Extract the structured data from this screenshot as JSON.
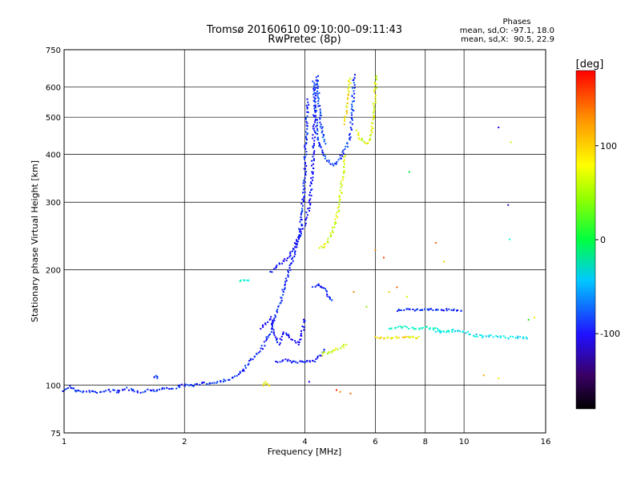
{
  "chart_data": {
    "type": "scatter",
    "title": "Tromsø 20160610 09:10:00–09:11:43",
    "subtitle": "RwPretec (8p)",
    "xlabel": "Frequency [MHz]",
    "ylabel": "Stationary phase Virtual Height [km]",
    "x_scale": "log",
    "y_scale": "log",
    "xlim": [
      1,
      16
    ],
    "ylim": [
      75,
      750
    ],
    "grid": true,
    "x_ticks": [
      1,
      2,
      4,
      6,
      8,
      10,
      16
    ],
    "x_tick_labels": [
      "1",
      "2",
      "4",
      "6",
      "8",
      "10",
      "16"
    ],
    "y_ticks": [
      75,
      100,
      200,
      300,
      400,
      500,
      600,
      750
    ],
    "y_tick_labels": [
      "75",
      "100",
      "200",
      "300",
      "400",
      "500",
      "600",
      "750"
    ],
    "phases_box": {
      "title": "Phases",
      "line_o": "mean, sd,O: -97.1, 18.0",
      "line_x": "mean, sd,X:  90.5, 22.9"
    },
    "colorbar": {
      "label": "[deg]",
      "range": [
        -180,
        180
      ],
      "ticks": [
        100,
        0,
        -100
      ],
      "tick_labels": [
        "100",
        "0",
        "-100"
      ],
      "colormap": "rainbow"
    },
    "traces": [
      {
        "points": [
          [
            1.0,
            97
          ],
          [
            1.03,
            99
          ],
          [
            1.06,
            97
          ],
          [
            1.1,
            96
          ],
          [
            1.15,
            96
          ],
          [
            1.2,
            96
          ],
          [
            1.25,
            96
          ],
          [
            1.3,
            97
          ],
          [
            1.36,
            96
          ],
          [
            1.42,
            98
          ],
          [
            1.48,
            97
          ],
          [
            1.55,
            96
          ],
          [
            1.62,
            97
          ],
          [
            1.7,
            97
          ],
          [
            1.78,
            98
          ],
          [
            1.86,
            98
          ],
          [
            1.94,
            99
          ],
          [
            2.0,
            100
          ],
          [
            2.08,
            100
          ],
          [
            2.16,
            100
          ],
          [
            2.24,
            101
          ],
          [
            2.32,
            101
          ],
          [
            2.42,
            102
          ],
          [
            2.52,
            103
          ],
          [
            2.62,
            104
          ],
          [
            2.72,
            106
          ],
          [
            2.82,
            110
          ],
          [
            2.9,
            115
          ],
          [
            2.98,
            118
          ],
          [
            3.05,
            122
          ],
          [
            3.12,
            125
          ],
          [
            3.2,
            130
          ],
          [
            3.28,
            138
          ],
          [
            3.36,
            148
          ],
          [
            3.44,
            160
          ],
          [
            3.5,
            170
          ],
          [
            3.56,
            182
          ],
          [
            3.6,
            190
          ],
          [
            3.66,
            200
          ],
          [
            3.72,
            210
          ],
          [
            3.78,
            225
          ],
          [
            3.84,
            240
          ],
          [
            3.9,
            260
          ],
          [
            3.94,
            290
          ],
          [
            3.98,
            320
          ],
          [
            4.0,
            360
          ],
          [
            4.02,
            420
          ],
          [
            4.05,
            500
          ],
          [
            4.08,
            560
          ]
        ],
        "phase": -100
      },
      {
        "points": [
          [
            3.3,
            197
          ],
          [
            3.4,
            203
          ],
          [
            3.5,
            208
          ],
          [
            3.6,
            213
          ],
          [
            3.7,
            222
          ],
          [
            3.8,
            235
          ],
          [
            3.9,
            248
          ],
          [
            4.0,
            265
          ],
          [
            4.1,
            290
          ],
          [
            4.15,
            330
          ],
          [
            4.2,
            400
          ],
          [
            4.22,
            470
          ],
          [
            4.24,
            540
          ],
          [
            4.26,
            600
          ],
          [
            4.28,
            630
          ]
        ],
        "phase": -110
      },
      {
        "points": [
          [
            4.2,
            620
          ],
          [
            4.25,
            520
          ],
          [
            4.3,
            440
          ],
          [
            4.4,
            410
          ],
          [
            4.5,
            390
          ],
          [
            4.6,
            380
          ],
          [
            4.7,
            375
          ],
          [
            4.8,
            380
          ],
          [
            4.9,
            392
          ],
          [
            5.0,
            405
          ],
          [
            5.1,
            420
          ],
          [
            5.2,
            450
          ],
          [
            5.25,
            500
          ],
          [
            5.28,
            560
          ],
          [
            5.3,
            620
          ],
          [
            5.32,
            650
          ]
        ],
        "phase": -95
      },
      {
        "points": [
          [
            4.3,
            640
          ],
          [
            4.32,
            580
          ],
          [
            4.35,
            520
          ],
          [
            4.4,
            470
          ],
          [
            4.45,
            440
          ],
          [
            4.5,
            420
          ]
        ],
        "phase": -90
      },
      {
        "points": [
          [
            4.35,
            228
          ],
          [
            4.45,
            230
          ],
          [
            4.55,
            236
          ],
          [
            4.65,
            246
          ],
          [
            4.75,
            262
          ],
          [
            4.85,
            290
          ],
          [
            4.92,
            320
          ],
          [
            4.98,
            360
          ],
          [
            5.02,
            400
          ]
        ],
        "phase": 95
      },
      {
        "points": [
          [
            5.05,
            480
          ],
          [
            5.1,
            560
          ],
          [
            5.15,
            600
          ],
          [
            5.2,
            640
          ]
        ],
        "phase": 110
      },
      {
        "points": [
          [
            5.4,
            460
          ],
          [
            5.5,
            440
          ],
          [
            5.6,
            430
          ],
          [
            5.7,
            428
          ],
          [
            5.8,
            432
          ],
          [
            5.85,
            445
          ],
          [
            5.9,
            470
          ],
          [
            5.95,
            520
          ],
          [
            6.0,
            580
          ],
          [
            6.02,
            620
          ],
          [
            6.04,
            650
          ]
        ],
        "phase": 100
      },
      {
        "points": [
          [
            3.4,
            115
          ],
          [
            3.5,
            116
          ],
          [
            3.6,
            116
          ],
          [
            3.7,
            115
          ],
          [
            3.8,
            115
          ],
          [
            3.9,
            115
          ],
          [
            4.0,
            115
          ],
          [
            4.1,
            115
          ],
          [
            4.2,
            115
          ],
          [
            4.3,
            117
          ],
          [
            4.4,
            120
          ],
          [
            4.5,
            124
          ]
        ],
        "phase": -105
      },
      {
        "points": [
          [
            4.4,
            120
          ],
          [
            4.5,
            122
          ],
          [
            4.6,
            121
          ],
          [
            4.7,
            122
          ],
          [
            4.8,
            124
          ],
          [
            4.9,
            125
          ],
          [
            5.0,
            126
          ],
          [
            5.1,
            128
          ]
        ],
        "phase": 95
      },
      {
        "points": [
          [
            6.0,
            133
          ],
          [
            6.3,
            133
          ],
          [
            6.6,
            133
          ],
          [
            6.9,
            133
          ],
          [
            7.2,
            133
          ],
          [
            7.5,
            133
          ],
          [
            7.8,
            133
          ]
        ],
        "phase": 110
      },
      {
        "points": [
          [
            6.8,
            157
          ],
          [
            7.0,
            157
          ],
          [
            7.3,
            157
          ],
          [
            7.6,
            157
          ],
          [
            8.0,
            157
          ],
          [
            8.4,
            157
          ],
          [
            8.8,
            157
          ],
          [
            9.2,
            157
          ],
          [
            9.6,
            157
          ],
          [
            10.0,
            157
          ]
        ],
        "phase": -100
      },
      {
        "points": [
          [
            3.1,
            140
          ],
          [
            3.2,
            145
          ],
          [
            3.3,
            150
          ],
          [
            3.35,
            135
          ],
          [
            3.45,
            128
          ],
          [
            3.55,
            138
          ],
          [
            3.7,
            132
          ],
          [
            3.85,
            128
          ],
          [
            3.95,
            140
          ],
          [
            4.0,
            150
          ]
        ],
        "phase": -115
      },
      {
        "points": [
          [
            4.2,
            180
          ],
          [
            4.3,
            182
          ],
          [
            4.4,
            181
          ],
          [
            4.5,
            178
          ],
          [
            4.6,
            170
          ],
          [
            4.7,
            165
          ]
        ],
        "phase": -100
      },
      {
        "points": [
          [
            6.5,
            140
          ],
          [
            6.9,
            142
          ],
          [
            7.3,
            141
          ],
          [
            7.7,
            140
          ],
          [
            8.1,
            141
          ],
          [
            8.5,
            140
          ],
          [
            8.9,
            138
          ],
          [
            9.4,
            140
          ]
        ],
        "phase": -20
      },
      {
        "points": [
          [
            8.5,
            138
          ],
          [
            9.0,
            137
          ],
          [
            9.5,
            139
          ],
          [
            10.0,
            138
          ],
          [
            10.5,
            135
          ],
          [
            11.0,
            134
          ],
          [
            12.0,
            134
          ],
          [
            13.0,
            133
          ],
          [
            14.0,
            133
          ],
          [
            14.5,
            133
          ]
        ],
        "phase": -40
      },
      {
        "points": [
          [
            1.68,
            104
          ],
          [
            1.7,
            106
          ],
          [
            1.72,
            103
          ]
        ],
        "phase": -100
      },
      {
        "points": [
          [
            2.75,
            187
          ],
          [
            2.8,
            188
          ],
          [
            2.85,
            187
          ],
          [
            2.9,
            188
          ]
        ],
        "phase": -20
      },
      {
        "points": [
          [
            3.15,
            100
          ],
          [
            3.2,
            102
          ],
          [
            3.25,
            98
          ]
        ],
        "phase": 105
      }
    ],
    "scatter_points": [
      {
        "x": 5.2,
        "y": 95,
        "phase": 150
      },
      {
        "x": 4.8,
        "y": 97,
        "phase": 170
      },
      {
        "x": 7.3,
        "y": 360,
        "phase": 20
      },
      {
        "x": 6.0,
        "y": 225,
        "phase": 140
      },
      {
        "x": 6.3,
        "y": 215,
        "phase": 160
      },
      {
        "x": 8.5,
        "y": 235,
        "phase": 150
      },
      {
        "x": 8.9,
        "y": 210,
        "phase": 120
      },
      {
        "x": 12.2,
        "y": 470,
        "phase": -130
      },
      {
        "x": 13.1,
        "y": 430,
        "phase": 100
      },
      {
        "x": 12.9,
        "y": 295,
        "phase": -150
      },
      {
        "x": 13.0,
        "y": 240,
        "phase": -30
      },
      {
        "x": 12.2,
        "y": 104,
        "phase": 110
      },
      {
        "x": 11.2,
        "y": 106,
        "phase": 130
      },
      {
        "x": 15.0,
        "y": 150,
        "phase": 110
      },
      {
        "x": 14.5,
        "y": 148,
        "phase": 40
      },
      {
        "x": 6.5,
        "y": 175,
        "phase": 120
      },
      {
        "x": 6.8,
        "y": 180,
        "phase": 150
      },
      {
        "x": 7.2,
        "y": 170,
        "phase": 100
      },
      {
        "x": 5.3,
        "y": 175,
        "phase": 140
      },
      {
        "x": 5.7,
        "y": 160,
        "phase": 80
      },
      {
        "x": 4.1,
        "y": 102,
        "phase": -130
      },
      {
        "x": 4.9,
        "y": 96,
        "phase": 140
      }
    ]
  }
}
